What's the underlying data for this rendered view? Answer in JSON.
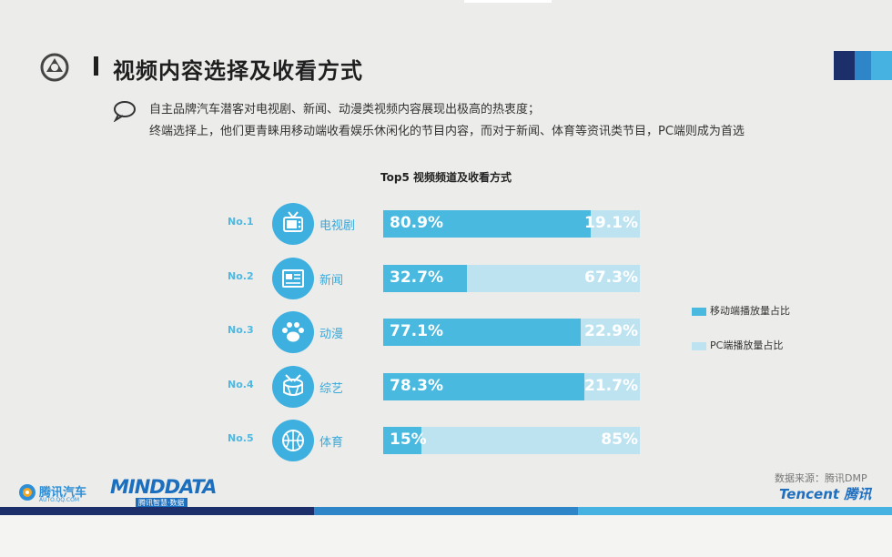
{
  "colors": {
    "mobile": "#4ab9e0",
    "pc": "#bde3f1",
    "accent": "#3db0e0",
    "rank_text": "#4fb8e0",
    "dark_navy": "#1d2f6b",
    "corner_blue": "#2e86c8",
    "corner_light": "#45b2e2"
  },
  "header": {
    "title": "视频内容选择及收看方式",
    "logo_icon": "tencent-auto-logo-icon"
  },
  "description": {
    "icon": "speech-bubble-icon",
    "line1": "自主品牌汽车潜客对电视剧、新闻、动漫类视频内容展现出极高的热衷度；",
    "line2": "终端选择上，他们更青睐用移动端收看娱乐休闲化的节目内容，而对于新闻、体育等资讯类节目，PC端则成为首选"
  },
  "chart_data": {
    "type": "bar",
    "stacked": true,
    "orientation": "horizontal",
    "title": "Top5 视频频道及收看方式",
    "ranks": [
      "No.1",
      "No.2",
      "No.3",
      "No.4",
      "No.5"
    ],
    "categories": [
      "电视剧",
      "新闻",
      "动漫",
      "综艺",
      "体育"
    ],
    "icons": [
      "tv-icon",
      "newspaper-icon",
      "paw-icon",
      "drum-icon",
      "basketball-icon"
    ],
    "series": [
      {
        "name": "移动端播放量占比",
        "values": [
          80.9,
          32.7,
          77.1,
          78.3,
          15
        ],
        "labels": [
          "80.9%",
          "32.7%",
          "77.1%",
          "78.3%",
          "15%"
        ]
      },
      {
        "name": "PC端播放量占比",
        "values": [
          19.1,
          67.3,
          22.9,
          21.7,
          85
        ],
        "labels": [
          "19.1%",
          "67.3%",
          "22.9%",
          "21.7%",
          "85%"
        ]
      }
    ],
    "xlim": [
      0,
      100
    ],
    "legend_position": "right"
  },
  "footer": {
    "source": "数据来源：腾讯DMP",
    "brand": "Tencent 腾讯",
    "logo_auto_name": "腾讯汽车",
    "logo_auto_url": "AUTO.QQ.COM",
    "logo_mind_name": "MINDDATA",
    "logo_mind_sub": "腾讯智慧·数据"
  }
}
